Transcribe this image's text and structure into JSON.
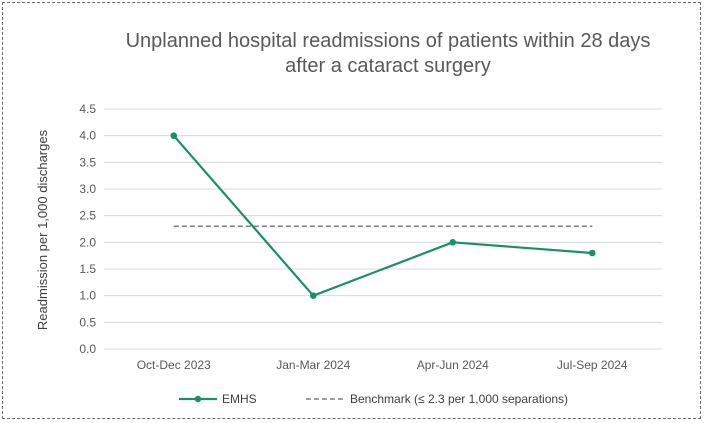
{
  "chart_data": {
    "type": "line",
    "title_lines": [
      "Unplanned hospital readmissions of patients within 28 days",
      "after a cataract surgery"
    ],
    "xlabel": "",
    "ylabel": "Readmission per 1,000 discharges",
    "categories": [
      "Oct-Dec 2023",
      "Jan-Mar 2024",
      "Apr-Jun 2024",
      "Jul-Sep 2024"
    ],
    "ylim": [
      0,
      4.5
    ],
    "yticks": [
      "0.0",
      "0.5",
      "1.0",
      "1.5",
      "2.0",
      "2.5",
      "3.0",
      "3.5",
      "4.0",
      "4.5"
    ],
    "grid": true,
    "series": [
      {
        "name": "EMHS",
        "values": [
          4.0,
          1.0,
          2.0,
          1.8
        ],
        "color": "#1a9068",
        "style": "solid-with-markers"
      }
    ],
    "benchmark": {
      "name": "Benchmark (≤ 2.3 per 1,000 separations)",
      "value": 2.3,
      "color": "#7f7f7f",
      "style": "dashed"
    },
    "legend_position": "bottom"
  }
}
